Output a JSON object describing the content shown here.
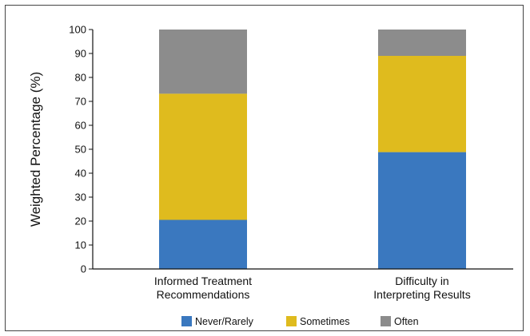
{
  "chart_data": {
    "type": "bar",
    "stacked": true,
    "title": "",
    "xlabel": "",
    "ylabel": "Weighted Percentage (%)",
    "ylim": [
      0,
      100
    ],
    "yticks": [
      0,
      10,
      20,
      30,
      40,
      50,
      60,
      70,
      80,
      90,
      100
    ],
    "categories": [
      [
        "Informed Treatment",
        "Recommendations"
      ],
      [
        "Difficulty in",
        "Interpreting Results"
      ]
    ],
    "series": [
      {
        "name": "Never/Rarely",
        "values": [
          20.5,
          48.8
        ],
        "color": "#3a78bf"
      },
      {
        "name": "Sometimes",
        "values": [
          52.7,
          40.2
        ],
        "color": "#dfbb1e"
      },
      {
        "name": "Often",
        "values": [
          26.8,
          11.0
        ],
        "color": "#8c8c8c"
      }
    ],
    "grid": false,
    "legend": "bottom"
  }
}
